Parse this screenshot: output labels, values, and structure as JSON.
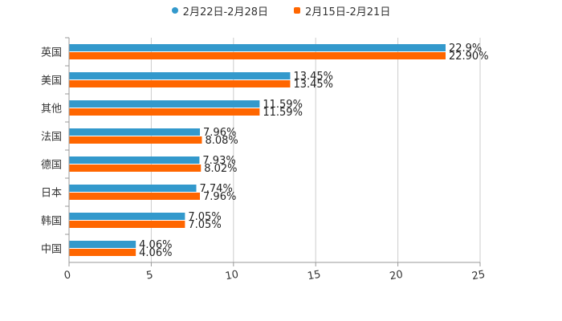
{
  "chart_data": {
    "type": "bar",
    "orientation": "horizontal",
    "title": "",
    "xlabel": "",
    "ylabel": "",
    "xlim": [
      0,
      25
    ],
    "xticks": [
      "0",
      "5",
      "10",
      "15",
      "20",
      "25"
    ],
    "grid": true,
    "legend_position": "top-center",
    "categories": [
      "英国",
      "美国",
      "其他",
      "法国",
      "德国",
      "日本",
      "韩国",
      "中国"
    ],
    "series": [
      {
        "name": "2月22日-2月28日",
        "color": "#3399cc",
        "values": [
          22.9,
          13.45,
          11.59,
          7.96,
          7.93,
          7.74,
          7.05,
          4.06
        ],
        "labels": [
          "22.9%",
          "13.45%",
          "11.59%",
          "7.96%",
          "7.93%",
          "7.74%",
          "7.05%",
          "4.06%"
        ]
      },
      {
        "name": "2月15日-2月21日",
        "color": "#ff6600",
        "values": [
          22.9,
          13.45,
          11.59,
          8.08,
          8.02,
          7.96,
          7.05,
          4.06
        ],
        "labels": [
          "22.90%",
          "13.45%",
          "11.59%",
          "8.08%",
          "8.02%",
          "7.96%",
          "7.05%",
          "4.06%"
        ]
      }
    ]
  }
}
